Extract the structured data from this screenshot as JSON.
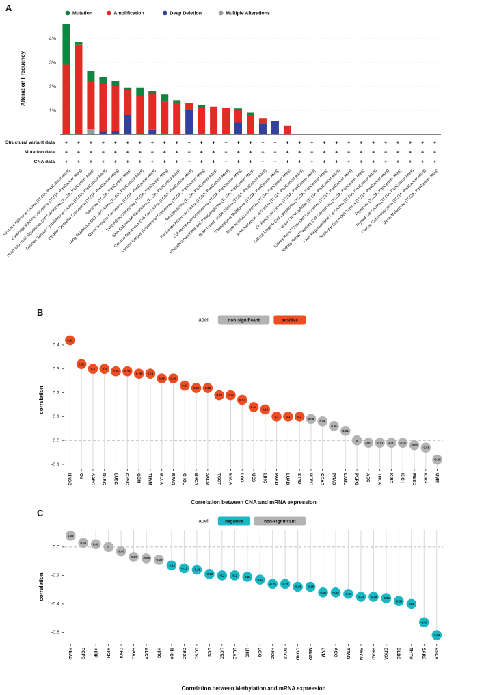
{
  "figure": {
    "panels": [
      {
        "id": "A",
        "label": "A"
      },
      {
        "id": "B",
        "label": "B"
      },
      {
        "id": "C",
        "label": "C"
      }
    ]
  },
  "colors": {
    "mutation": "#11843f",
    "amplification": "#e22b25",
    "deep_deletion": "#33409c",
    "multiple_alterations": "#999999",
    "positive": "#ef4e22",
    "negative": "#1ab8c4",
    "non_significant": "#b3b3b3"
  },
  "chart_data": [
    {
      "id": "A",
      "type": "bar",
      "stacked": true,
      "ylabel": "Alteration Frequency",
      "yticks": [
        "1%",
        "2%",
        "3%",
        "4%"
      ],
      "legend": [
        {
          "label": "Mutation",
          "color_key": "mutation"
        },
        {
          "label": "Amplification",
          "color_key": "amplification"
        },
        {
          "label": "Deep Deletion",
          "color_key": "deep_deletion"
        },
        {
          "label": "Multiple Alterations",
          "color_key": "multiple_alterations"
        }
      ],
      "data_rows": [
        {
          "label": "Structural variant data",
          "symbol": "+"
        },
        {
          "label": "Mutation data",
          "symbol": "+"
        },
        {
          "label": "CNA data",
          "symbol": "+"
        }
      ],
      "categories": [
        "Stomach Adenocarcinoma (TCGA, PanCancer Atlas)",
        "Esophageal Adenocarcinoma (TCGA, PanCancer Atlas)",
        "Head and Neck Squamous Cell Carcinoma (TCGA, PanCancer Atlas)",
        "Ovarian Serous Cystadenocarcinoma (TCGA, PanCancer Atlas)",
        "Bladder Urothelial Carcinoma (TCGA, PanCancer Atlas)",
        "Sarcoma (TCGA, PanCancer Atlas)",
        "Lung Squamous Cell Carcinoma (TCGA, PanCancer Atlas)",
        "Breast Invasive Carcinoma (TCGA, PanCancer Atlas)",
        "Lung Adenocarcinoma (TCGA, PanCancer Atlas)",
        "Skin Cutaneous Melanoma (TCGA, PanCancer Atlas)",
        "Cervical Squamous Cell Carcinoma (TCGA, PanCancer Atlas)",
        "Uterine Corpus Endometrial Carcinoma (TCGA, PanCancer Atlas)",
        "Mesothelioma (TCGA, PanCancer Atlas)",
        "Pancreatic Adenocarcinoma (TCGA, PanCancer Atlas)",
        "Colorectal Adenocarcinoma (TCGA, PanCancer Atlas)",
        "Pheochromocytoma and Paraganglioma (TCGA, PanCancer Atlas)",
        "Brain Lower Grade Glioma (TCGA, PanCancer Atlas)",
        "Glioblastoma Multiforme (TCGA, PanCancer Atlas)",
        "Acute Myeloid Leukemia (TCGA, PanCancer Atlas)",
        "Adrenocortical Carcinoma (TCGA, PanCancer Atlas)",
        "Cholangiocarcinoma (TCGA, PanCancer Atlas)",
        "Diffuse Large B-Cell Lymphoma (TCGA, PanCancer Atlas)",
        "Kidney Chromophobe (TCGA, PanCancer Atlas)",
        "Kidney Renal Clear Cell Carcinoma (TCGA, PanCancer Atlas)",
        "Kidney Renal Papillary Cell Carcinoma (TCGA, PanCancer Atlas)",
        "Liver Hepatocellular Carcinoma (TCGA, PanCancer Atlas)",
        "Testicular Germ Cell Tumors (TCGA, PanCancer Atlas)",
        "Thymoma (TCGA, PanCancer Atlas)",
        "Thyroid Carcinoma (TCGA, PanCancer Atlas)",
        "Uterine Carcinosarcoma (TCGA, PanCancer Atlas)",
        "Uveal Melanoma (TCGA, PanCancer Atlas)"
      ],
      "series": [
        {
          "name": "Multiple Alterations",
          "color_key": "multiple_alterations",
          "values": [
            0,
            0,
            0.2,
            0,
            0,
            0,
            0,
            0,
            0,
            0,
            0,
            0,
            0,
            0,
            0,
            0,
            0,
            0,
            0,
            0,
            0,
            0,
            0,
            0,
            0,
            0,
            0,
            0,
            0,
            0,
            0
          ]
        },
        {
          "name": "Deep Deletion",
          "color_key": "deep_deletion",
          "values": [
            0,
            0,
            0,
            0.1,
            0.12,
            0.8,
            0,
            0.18,
            0,
            0,
            1,
            0,
            0,
            0,
            0.5,
            0,
            0.45,
            0.55,
            0,
            0,
            0,
            0,
            0,
            0,
            0,
            0,
            0,
            0,
            0,
            0,
            0
          ]
        },
        {
          "name": "Amplification",
          "color_key": "amplification",
          "values": [
            2.9,
            3.75,
            2,
            2,
            1.9,
            1.05,
            1.6,
            1.5,
            1.35,
            1.3,
            0.3,
            1.1,
            1.15,
            1.1,
            0.5,
            0.8,
            0.2,
            0,
            0.35,
            0,
            0,
            0,
            0,
            0,
            0,
            0,
            0,
            0,
            0,
            0,
            0
          ]
        },
        {
          "name": "Mutation",
          "color_key": "mutation",
          "values": [
            1.7,
            0.1,
            0.45,
            0.3,
            0.18,
            0.1,
            0.35,
            0.12,
            0.3,
            0.12,
            0,
            0.1,
            0,
            0,
            0.08,
            0.1,
            0,
            0,
            0,
            0,
            0,
            0,
            0,
            0,
            0,
            0,
            0,
            0,
            0,
            0,
            0
          ]
        }
      ]
    },
    {
      "id": "B",
      "type": "scatter",
      "subtype": "lollipop",
      "xlabel": "Correlation between CNA and mRNA expression",
      "ylabel": "correlation",
      "ylim": [
        -0.12,
        0.46
      ],
      "yticks": [
        "0.4",
        "0.3",
        "0.2",
        "0.1",
        "0.0",
        "-0.1"
      ],
      "legend_title": "label",
      "legend": [
        {
          "label": "non-significant",
          "color_key": "non_significant"
        },
        {
          "label": "positive",
          "color_key": "positive"
        }
      ],
      "points": [
        {
          "code": "HNSC",
          "value": 0.42,
          "label": "0.42",
          "group": "positive"
        },
        {
          "code": "OV",
          "value": 0.32,
          "label": "0.32",
          "group": "positive"
        },
        {
          "code": "SARC",
          "value": 0.3,
          "label": "0.3",
          "group": "positive"
        },
        {
          "code": "DLBC",
          "value": 0.3,
          "label": "0.3",
          "group": "positive"
        },
        {
          "code": "LUSC",
          "value": 0.29,
          "label": "0.29",
          "group": "positive"
        },
        {
          "code": "CESC",
          "value": 0.29,
          "label": "0.29",
          "group": "positive"
        },
        {
          "code": "GBM",
          "value": 0.28,
          "label": "0.28",
          "group": "positive"
        },
        {
          "code": "THYM",
          "value": 0.28,
          "label": "0.28",
          "group": "positive"
        },
        {
          "code": "BLCA",
          "value": 0.26,
          "label": "0.26",
          "group": "positive"
        },
        {
          "code": "READ",
          "value": 0.26,
          "label": "0.26",
          "group": "positive"
        },
        {
          "code": "CHOL",
          "value": 0.23,
          "label": "0.23",
          "group": "positive"
        },
        {
          "code": "BRCA",
          "value": 0.22,
          "label": "0.22",
          "group": "positive"
        },
        {
          "code": "SKCM",
          "value": 0.22,
          "label": "0.22",
          "group": "positive"
        },
        {
          "code": "TGCT",
          "value": 0.19,
          "label": "0.19",
          "group": "positive"
        },
        {
          "code": "ESCA",
          "value": 0.19,
          "label": "0.19",
          "group": "positive"
        },
        {
          "code": "LGG",
          "value": 0.17,
          "label": "0.17",
          "group": "positive"
        },
        {
          "code": "UCS",
          "value": 0.14,
          "label": "0.14",
          "group": "positive"
        },
        {
          "code": "LIHC",
          "value": 0.13,
          "label": "0.13",
          "group": "positive"
        },
        {
          "code": "PAAD",
          "value": 0.1,
          "label": "0.1",
          "group": "positive"
        },
        {
          "code": "LUAD",
          "value": 0.1,
          "label": "0.1",
          "group": "positive"
        },
        {
          "code": "STAD",
          "value": 0.1,
          "label": "0.1",
          "group": "positive"
        },
        {
          "code": "UCEC",
          "value": 0.09,
          "label": "0.09",
          "group": "non-significant"
        },
        {
          "code": "COAD",
          "value": 0.08,
          "label": "0.08",
          "group": "non-significant"
        },
        {
          "code": "PRAD",
          "value": 0.06,
          "label": "0.06",
          "group": "non-significant"
        },
        {
          "code": "LAML",
          "value": 0.04,
          "label": "0.04",
          "group": "non-significant"
        },
        {
          "code": "PCPG",
          "value": 0,
          "label": "0",
          "group": "non-significant"
        },
        {
          "code": "ACC",
          "value": -0.01,
          "label": "-0.01",
          "group": "non-significant"
        },
        {
          "code": "THCA",
          "value": -0.01,
          "label": "-0.01",
          "group": "non-significant"
        },
        {
          "code": "KIRC",
          "value": -0.01,
          "label": "-0.01",
          "group": "non-significant"
        },
        {
          "code": "KICH",
          "value": -0.01,
          "label": "-0.01",
          "group": "non-significant"
        },
        {
          "code": "MESO",
          "value": -0.02,
          "label": "-0.02",
          "group": "non-significant"
        },
        {
          "code": "KIRP",
          "value": -0.03,
          "label": "-0.03",
          "group": "non-significant"
        },
        {
          "code": "UVM",
          "value": -0.08,
          "label": "-0.08",
          "group": "non-significant"
        }
      ]
    },
    {
      "id": "C",
      "type": "scatter",
      "subtype": "lollipop",
      "xlabel": "Correlation between Methylation and mRNA expression",
      "ylabel": "correlation",
      "ylim": [
        -0.68,
        0.12
      ],
      "yticks": [
        "0.0",
        "-0.2",
        "-0.4",
        "-0.6"
      ],
      "legend_title": "label",
      "legend": [
        {
          "label": "negative",
          "color_key": "negative"
        },
        {
          "label": "non-significant",
          "color_key": "non_significant"
        }
      ],
      "points": [
        {
          "code": "READ",
          "value": 0.08,
          "label": "0.08",
          "group": "non-significant"
        },
        {
          "code": "PCPG",
          "value": 0.03,
          "label": "0.03",
          "group": "non-significant"
        },
        {
          "code": "KIRP",
          "value": 0.02,
          "label": "0.02",
          "group": "non-significant"
        },
        {
          "code": "KICH",
          "value": 0,
          "label": "0",
          "group": "non-significant"
        },
        {
          "code": "CHOL",
          "value": -0.03,
          "label": "-0.03",
          "group": "non-significant"
        },
        {
          "code": "PAAD",
          "value": -0.07,
          "label": "-0.07",
          "group": "non-significant"
        },
        {
          "code": "BLCA",
          "value": -0.08,
          "label": "-0.08",
          "group": "non-significant"
        },
        {
          "code": "KIRC",
          "value": -0.09,
          "label": "-0.09",
          "group": "non-significant"
        },
        {
          "code": "THCA",
          "value": -0.13,
          "label": "-0.13",
          "group": "negative"
        },
        {
          "code": "CESC",
          "value": -0.15,
          "label": "-0.15",
          "group": "negative"
        },
        {
          "code": "LUSC",
          "value": -0.16,
          "label": "-0.16",
          "group": "negative"
        },
        {
          "code": "UCS",
          "value": -0.19,
          "label": "-0.19",
          "group": "negative"
        },
        {
          "code": "UCEC",
          "value": -0.2,
          "label": "-0.2",
          "group": "negative"
        },
        {
          "code": "LUAD",
          "value": -0.2,
          "label": "-0.2",
          "group": "negative"
        },
        {
          "code": "LIHC",
          "value": -0.21,
          "label": "-0.21",
          "group": "negative"
        },
        {
          "code": "LGG",
          "value": -0.23,
          "label": "-0.23",
          "group": "negative"
        },
        {
          "code": "HNSC",
          "value": -0.26,
          "label": "-0.26",
          "group": "negative"
        },
        {
          "code": "TGCT",
          "value": -0.26,
          "label": "-0.26",
          "group": "negative"
        },
        {
          "code": "COAD",
          "value": -0.28,
          "label": "-0.28",
          "group": "negative"
        },
        {
          "code": "MESO",
          "value": -0.28,
          "label": "-0.28",
          "group": "negative"
        },
        {
          "code": "UVM",
          "value": -0.32,
          "label": "-0.32",
          "group": "negative"
        },
        {
          "code": "ACC",
          "value": -0.32,
          "label": "-0.32",
          "group": "negative"
        },
        {
          "code": "STAD",
          "value": -0.33,
          "label": "-0.33",
          "group": "negative"
        },
        {
          "code": "SKCM",
          "value": -0.35,
          "label": "-0.35",
          "group": "negative"
        },
        {
          "code": "PRAD",
          "value": -0.35,
          "label": "-0.35",
          "group": "negative"
        },
        {
          "code": "BRCA",
          "value": -0.36,
          "label": "-0.36",
          "group": "negative"
        },
        {
          "code": "DLBC",
          "value": -0.38,
          "label": "-0.38",
          "group": "negative"
        },
        {
          "code": "THYM",
          "value": -0.4,
          "label": "-0.4",
          "group": "negative"
        },
        {
          "code": "SARC",
          "value": -0.53,
          "label": "-0.53",
          "group": "negative"
        },
        {
          "code": "ESCA",
          "value": -0.62,
          "label": "-0.62",
          "group": "negative"
        }
      ]
    }
  ]
}
